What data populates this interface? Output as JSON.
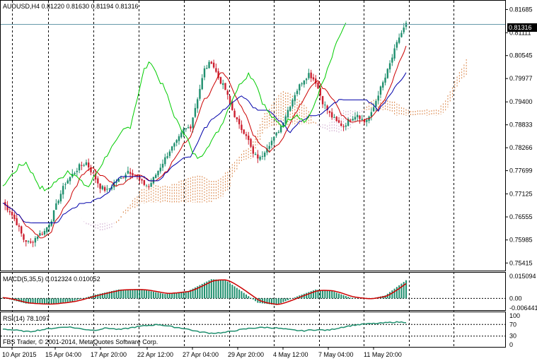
{
  "window": {
    "symbol_header": "AUDUSD,H4  0.81220 0.81630 0.81194 0.81316"
  },
  "colors": {
    "bull_candle": "#1f8f6e",
    "bear_candle": "#cc1f2f",
    "tenkan": "#cc0000",
    "kijun": "#0000aa",
    "chikou": "#00cc00",
    "cloud_a": "#d2691e",
    "cloud_b": "#c8a0c8",
    "macd_hist": "#1f8f6e",
    "macd_signal": "#cc0000",
    "rsi_line": "#1f8f6e",
    "grid": "#000000",
    "last_price_line": "#6699aa"
  },
  "chart_data": [
    {
      "type": "candlestick",
      "title": "AUDUSD,H4  0.81220 0.81630 0.81194 0.81316",
      "y_ticks": [
        "0.81685",
        "0.81111",
        "0.80545",
        "0.79977",
        "0.79400",
        "0.78833",
        "0.78266",
        "0.77699",
        "0.77125",
        "0.76555",
        "0.75985",
        "0.75415"
      ],
      "ylim": [
        0.7528,
        0.8185
      ],
      "last_price": "0.81316",
      "x_ticks": [
        "10 Apr 2015",
        "15 Apr 04:00",
        "17 Apr 20:00",
        "22 Apr 12:00",
        "27 Apr 04:00",
        "29 Apr 20:00",
        "4 May 12:00",
        "7 May 04:00",
        "11 May 20:00"
      ],
      "close_path": [
        [
          0,
          0.769
        ],
        [
          3,
          0.767
        ],
        [
          6,
          0.764
        ],
        [
          9,
          0.76
        ],
        [
          12,
          0.759
        ],
        [
          15,
          0.761
        ],
        [
          18,
          0.762
        ],
        [
          21,
          0.765
        ],
        [
          24,
          0.77
        ],
        [
          27,
          0.774
        ],
        [
          30,
          0.776
        ],
        [
          33,
          0.778
        ],
        [
          36,
          0.779
        ],
        [
          39,
          0.776
        ],
        [
          42,
          0.773
        ],
        [
          45,
          0.772
        ],
        [
          48,
          0.774
        ],
        [
          51,
          0.775
        ],
        [
          54,
          0.777
        ],
        [
          57,
          0.776
        ],
        [
          60,
          0.774
        ],
        [
          63,
          0.773
        ],
        [
          66,
          0.776
        ],
        [
          69,
          0.779
        ],
        [
          72,
          0.782
        ],
        [
          75,
          0.784
        ],
        [
          78,
          0.787
        ],
        [
          81,
          0.788
        ],
        [
          84,
          0.795
        ],
        [
          87,
          0.802
        ],
        [
          90,
          0.804
        ],
        [
          93,
          0.8
        ],
        [
          96,
          0.797
        ],
        [
          99,
          0.792
        ],
        [
          102,
          0.788
        ],
        [
          105,
          0.786
        ],
        [
          108,
          0.781
        ],
        [
          111,
          0.78
        ],
        [
          114,
          0.783
        ],
        [
          117,
          0.785
        ],
        [
          120,
          0.788
        ],
        [
          123,
          0.792
        ],
        [
          126,
          0.796
        ],
        [
          129,
          0.799
        ],
        [
          132,
          0.801
        ],
        [
          135,
          0.799
        ],
        [
          138,
          0.794
        ],
        [
          141,
          0.791
        ],
        [
          144,
          0.789
        ],
        [
          147,
          0.788
        ],
        [
          150,
          0.79
        ],
        [
          153,
          0.791
        ],
        [
          156,
          0.789
        ],
        [
          159,
          0.791
        ],
        [
          162,
          0.796
        ],
        [
          165,
          0.8
        ],
        [
          168,
          0.805
        ],
        [
          171,
          0.81
        ],
        [
          174,
          0.8132
        ]
      ]
    },
    {
      "type": "bar",
      "title": "MACD(5,35,5) 0.012324 0.010052",
      "y_ticks": [
        "0.015094",
        "0.00",
        "-0.006441"
      ],
      "ylim": [
        -0.0075,
        0.0155
      ],
      "histogram_path": [
        [
          0,
          0.0005
        ],
        [
          10,
          -0.0035
        ],
        [
          20,
          -0.004
        ],
        [
          30,
          -0.002
        ],
        [
          40,
          0.0025
        ],
        [
          50,
          0.006
        ],
        [
          60,
          0.006
        ],
        [
          70,
          0.003
        ],
        [
          80,
          0.005
        ],
        [
          90,
          0.013
        ],
        [
          96,
          0.0125
        ],
        [
          102,
          0.006
        ],
        [
          110,
          -0.003
        ],
        [
          118,
          -0.0045
        ],
        [
          128,
          0.002
        ],
        [
          135,
          0.006
        ],
        [
          142,
          0.005
        ],
        [
          150,
          0.0005
        ],
        [
          158,
          -0.0005
        ],
        [
          165,
          0.002
        ],
        [
          174,
          0.0123
        ]
      ],
      "signal_value": 0.010052
    },
    {
      "type": "line",
      "title": "RSI(14) 78.1097",
      "y_ticks": [
        "100",
        "70",
        "30",
        "0"
      ],
      "ylim": [
        0,
        100
      ],
      "series": [
        {
          "name": "RSI(14)",
          "values": [
            55,
            50,
            45,
            52,
            58,
            62,
            55,
            50,
            58,
            52,
            60,
            66,
            70,
            62,
            56,
            45,
            40,
            42,
            50,
            57,
            60,
            58,
            52,
            48,
            52,
            50,
            60,
            68,
            72,
            74,
            78,
            78
          ]
        }
      ]
    }
  ],
  "footer": {
    "copyright": "FBS Trader, © 2001-2014, MetaQuotes Software Corp."
  }
}
